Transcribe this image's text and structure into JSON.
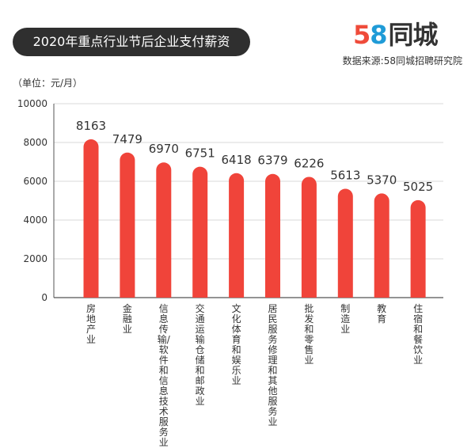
{
  "header": {
    "title": "2020年重点行业节后企业支付薪资",
    "logo_digit1": "5",
    "logo_digit2": "8",
    "logo_text": "同城",
    "source": "数据来源:58同城招聘研究院",
    "unit": "（单位：元/月）"
  },
  "colors": {
    "bar": "#f0443a",
    "grid": "#d9d9d9",
    "axis": "#555555",
    "logo_red": "#ef4b3a",
    "logo_blue": "#1f9bd7"
  },
  "chart_data": {
    "type": "bar",
    "title": "2020年重点行业节后企业支付薪资",
    "ylabel": "（单位：元/月）",
    "ylim": [
      0,
      10000
    ],
    "yticks": [
      0,
      2000,
      4000,
      6000,
      8000,
      10000
    ],
    "grid": true,
    "categories": [
      "房地产业",
      "金融业",
      "信息传输/软件和信息技术服务业",
      "交通运输仓储和邮政业",
      "文化体育和娱乐业",
      "居民服务修理和其他服务业",
      "批发和零售业",
      "制造业",
      "教育",
      "住宿和餐饮业"
    ],
    "values": [
      8163,
      7479,
      6970,
      6751,
      6418,
      6379,
      6226,
      5613,
      5370,
      5025
    ]
  }
}
